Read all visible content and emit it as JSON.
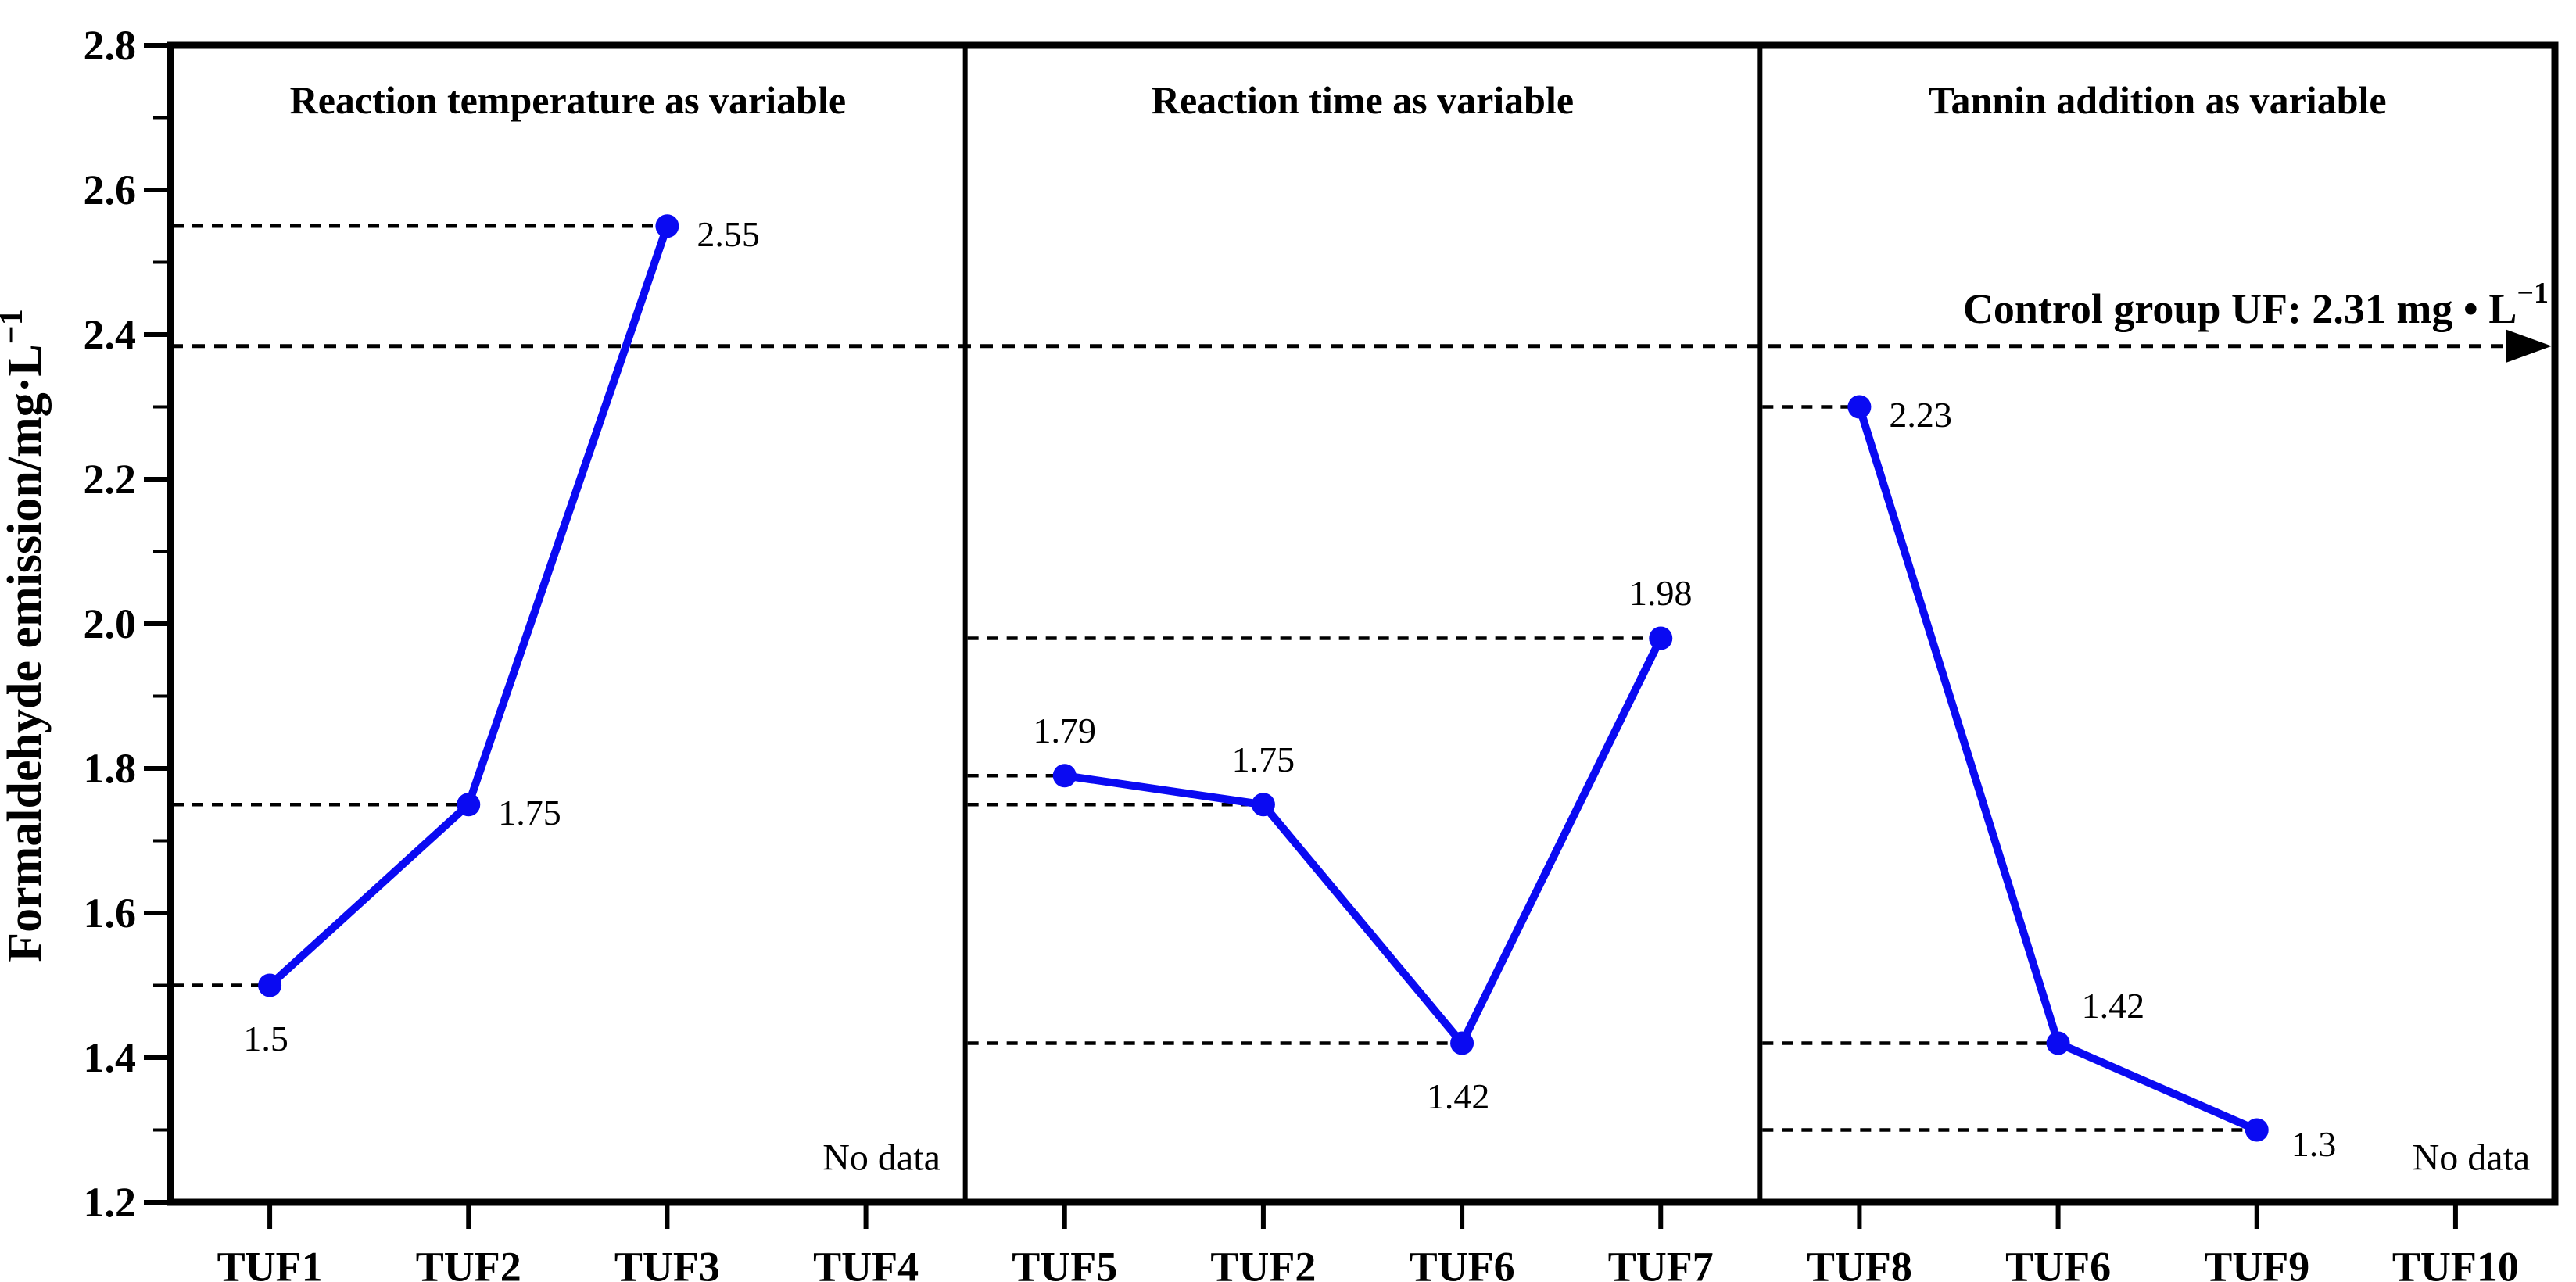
{
  "figure_title": "Formaldehyde emission line chart",
  "chart_data": {
    "type": "line",
    "ylabel": "Formaldehyde emission/mg·L",
    "ylabel_superscript": "−1",
    "ylim": [
      1.2,
      2.8
    ],
    "ytick_labels": [
      "2.8",
      "2.6",
      "2.4",
      "2.2",
      "2.0",
      "1.8",
      "1.6",
      "1.4",
      "1.2"
    ],
    "ytick_values": [
      2.8,
      2.6,
      2.4,
      2.2,
      2.0,
      1.8,
      1.6,
      1.4,
      1.2
    ],
    "yminor_values": [
      2.7,
      2.5,
      2.3,
      2.1,
      1.9,
      1.7,
      1.5,
      1.3
    ],
    "grid": "off",
    "legend": "none",
    "panels": [
      {
        "title": "Reaction temperature as variable",
        "categories": [
          "TUF1",
          "TUF2",
          "TUF3",
          "TUF4"
        ],
        "values": [
          1.5,
          1.75,
          2.55,
          null
        ],
        "point_labels": [
          "1.5",
          "1.75",
          "2.55",
          null
        ],
        "label_placements": [
          "below",
          "right",
          "right",
          null
        ],
        "no_data": {
          "index": 3,
          "text": "No data"
        }
      },
      {
        "title": "Reaction time as variable",
        "categories": [
          "TUF5",
          "TUF2",
          "TUF6",
          "TUF7"
        ],
        "values": [
          1.79,
          1.75,
          1.42,
          1.98
        ],
        "point_labels": [
          "1.79",
          "1.75",
          "1.42",
          "1.98"
        ],
        "label_placements": [
          "above",
          "above",
          "below",
          "above"
        ]
      },
      {
        "title": "Tannin addition as variable",
        "categories": [
          "TUF8",
          "TUF6",
          "TUF9",
          "TUF10"
        ],
        "values": [
          2.23,
          1.42,
          1.3,
          null
        ],
        "visual_values": [
          2.3,
          1.42,
          1.3,
          null
        ],
        "point_labels": [
          "2.23",
          "1.42",
          "1.3",
          null
        ],
        "label_placements": [
          "right",
          "above-right",
          "below-right",
          null
        ],
        "no_data": {
          "index": 3,
          "text": "No data"
        }
      }
    ],
    "control_line": {
      "label": "Control group UF: 2.31 mg • L",
      "label_superscript": "−1",
      "value": 2.31,
      "visual_value": 2.384,
      "arrow": "right"
    },
    "style": {
      "line_color": "#0a0af2",
      "axis_color": "#000000",
      "text_color": "#000000",
      "background": "#ffffff"
    }
  }
}
